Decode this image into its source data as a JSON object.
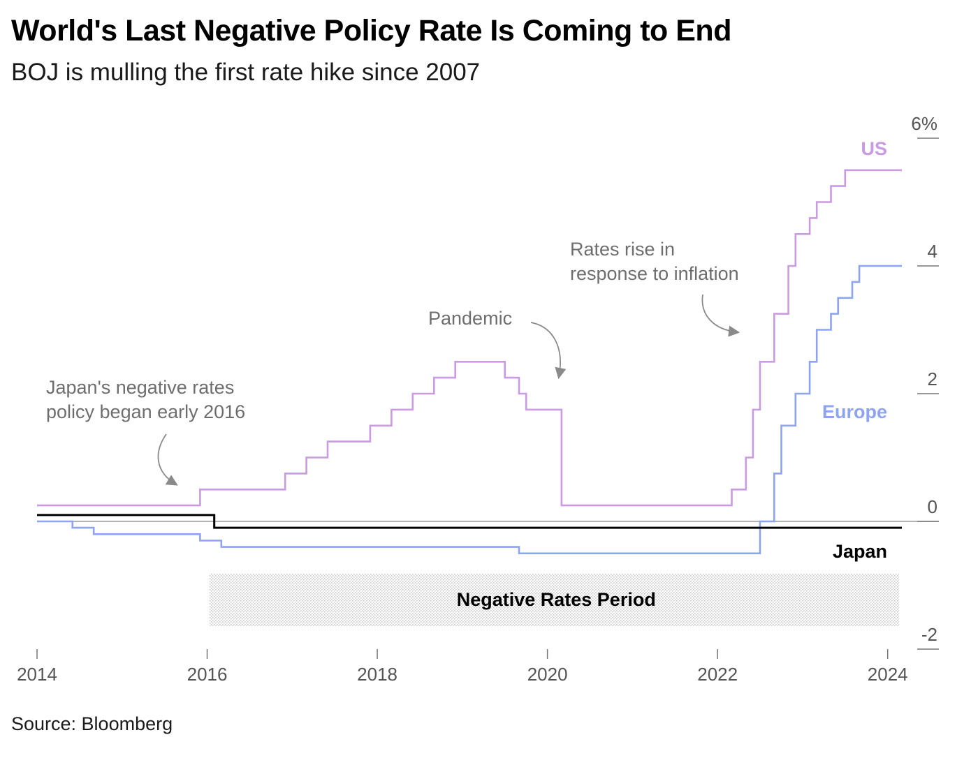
{
  "header": {
    "title": "World's Last Negative Policy Rate Is Coming to End",
    "subtitle": "BOJ is mulling the first rate hike since 2007"
  },
  "footer": {
    "source": "Source: Bloomberg"
  },
  "colors": {
    "us": "#c99be0",
    "europe": "#8ea4f2",
    "japan": "#000000",
    "annotation": "#6e6e6e",
    "zero_line": "#9a9a9a",
    "axis_text": "#555555",
    "shade": "#cfcfcf"
  },
  "chart_data": {
    "type": "line",
    "step": true,
    "xlim": [
      "2014-01",
      "2024-03"
    ],
    "ylim": [
      -2,
      6
    ],
    "xticks": [
      "2014",
      "2016",
      "2018",
      "2020",
      "2022",
      "2024"
    ],
    "yticks": [
      {
        "value": 6,
        "label": "6%"
      },
      {
        "value": 4,
        "label": "4"
      },
      {
        "value": 2,
        "label": "2"
      },
      {
        "value": 0,
        "label": "0"
      },
      {
        "value": -2,
        "label": "-2"
      }
    ],
    "grid": false,
    "series": [
      {
        "name": "US",
        "key": "us",
        "points": [
          [
            "2014-01",
            0.25
          ],
          [
            "2015-12",
            0.5
          ],
          [
            "2016-12",
            0.75
          ],
          [
            "2017-03",
            1.0
          ],
          [
            "2017-06",
            1.25
          ],
          [
            "2017-12",
            1.5
          ],
          [
            "2018-03",
            1.75
          ],
          [
            "2018-06",
            2.0
          ],
          [
            "2018-09",
            2.25
          ],
          [
            "2018-12",
            2.5
          ],
          [
            "2019-07",
            2.25
          ],
          [
            "2019-09",
            2.0
          ],
          [
            "2019-10",
            1.75
          ],
          [
            "2020-03",
            0.25
          ],
          [
            "2022-03",
            0.5
          ],
          [
            "2022-05",
            1.0
          ],
          [
            "2022-06",
            1.75
          ],
          [
            "2022-07",
            2.5
          ],
          [
            "2022-09",
            3.25
          ],
          [
            "2022-11",
            4.0
          ],
          [
            "2022-12",
            4.5
          ],
          [
            "2023-02",
            4.75
          ],
          [
            "2023-03",
            5.0
          ],
          [
            "2023-05",
            5.25
          ],
          [
            "2023-07",
            5.5
          ],
          [
            "2024-03",
            5.5
          ]
        ]
      },
      {
        "name": "Europe",
        "key": "europe",
        "points": [
          [
            "2014-01",
            0.0
          ],
          [
            "2014-06",
            -0.1
          ],
          [
            "2014-09",
            -0.2
          ],
          [
            "2015-12",
            -0.3
          ],
          [
            "2016-03",
            -0.4
          ],
          [
            "2019-09",
            -0.5
          ],
          [
            "2022-07",
            0.0
          ],
          [
            "2022-09",
            0.75
          ],
          [
            "2022-10",
            1.5
          ],
          [
            "2022-12",
            2.0
          ],
          [
            "2023-02",
            2.5
          ],
          [
            "2023-03",
            3.0
          ],
          [
            "2023-05",
            3.25
          ],
          [
            "2023-06",
            3.5
          ],
          [
            "2023-08",
            3.75
          ],
          [
            "2023-09",
            4.0
          ],
          [
            "2024-03",
            4.0
          ]
        ]
      },
      {
        "name": "Japan",
        "key": "japan",
        "points": [
          [
            "2014-01",
            0.1
          ],
          [
            "2016-02",
            -0.1
          ],
          [
            "2024-03",
            -0.1
          ]
        ]
      }
    ],
    "series_labels": [
      {
        "key": "us",
        "text": "US"
      },
      {
        "key": "europe",
        "text": "Europe"
      },
      {
        "key": "japan",
        "text": "Japan"
      }
    ],
    "shaded_region": {
      "label": "Negative Rates Period",
      "x": [
        "2016-01",
        "2024-03"
      ]
    },
    "annotations": [
      {
        "lines": [
          "Japan's negative rates",
          "policy began early 2016"
        ]
      },
      {
        "lines": [
          "Pandemic"
        ]
      },
      {
        "lines": [
          "Rates rise in",
          "response to inflation"
        ]
      }
    ]
  }
}
